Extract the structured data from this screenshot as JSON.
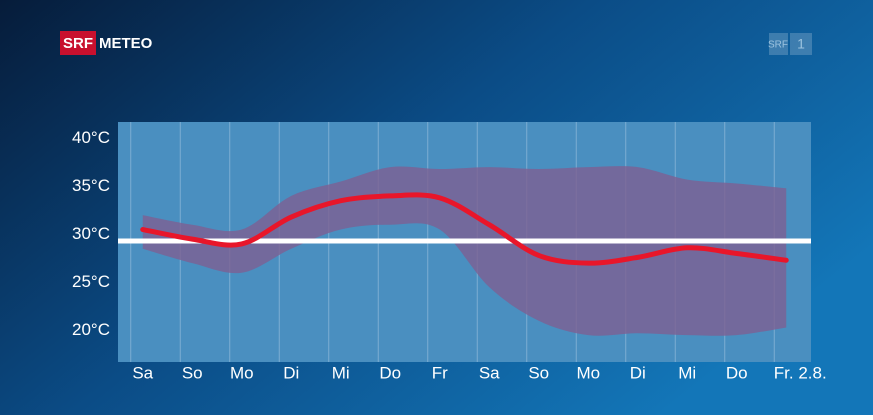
{
  "header": {
    "brand": "SRF",
    "product": "METEO",
    "channel": {
      "name": "SRF",
      "number": "1"
    }
  },
  "chart_data": {
    "type": "band-line",
    "categories": [
      "Sa",
      "So",
      "Mo",
      "Di",
      "Mi",
      "Do",
      "Fr",
      "Sa",
      "So",
      "Mo",
      "Di",
      "Mi",
      "Do",
      "Fr. 2.8."
    ],
    "series": [
      {
        "color": "#e8162a",
        "values": [
          30.5,
          29.5,
          29,
          31.8,
          33.5,
          34,
          33.8,
          31,
          27.8,
          27,
          27.6,
          28.6,
          28,
          27.3
        ]
      }
    ],
    "band": {
      "color": "#7d5f92",
      "upper": [
        32,
        31,
        30.5,
        34,
        35.5,
        37,
        36.8,
        37,
        36.8,
        37,
        37,
        35.7,
        35.3,
        34.8
      ],
      "lower": [
        28.5,
        27,
        26,
        28.5,
        30.5,
        31,
        30.5,
        24.5,
        21,
        19.5,
        19.7,
        19.5,
        19.5,
        20.3
      ]
    },
    "reference_line": {
      "value": 29.3,
      "color": "#ffffff"
    },
    "ylim": [
      16.7,
      41.7
    ],
    "yticks": [
      {
        "value": 20,
        "label": "20°C"
      },
      {
        "value": 25,
        "label": "25°C"
      },
      {
        "value": 30,
        "label": "30°C"
      },
      {
        "value": 35,
        "label": "35°C"
      },
      {
        "value": 40,
        "label": "40°C"
      }
    ]
  }
}
